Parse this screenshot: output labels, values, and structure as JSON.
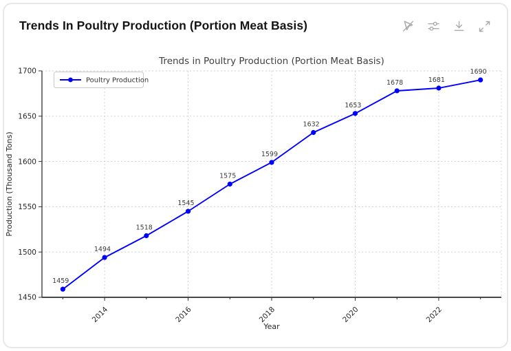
{
  "header": {
    "title": "Trends In Poultry Production (Portion Meat Basis)",
    "icons": [
      "pointer-off-icon",
      "sliders-icon",
      "download-icon",
      "expand-icon"
    ]
  },
  "colors": {
    "line": "#0000ff",
    "grid": "#cccccc",
    "spine": "#2f2f2f",
    "icon": "#a8a8a8",
    "card_border": "#e8e8e8",
    "header_text": "#141414",
    "chart_title_text": "#3f3f3f",
    "tick_text": "#262626",
    "annotation_text": "#3a3a3a"
  },
  "chart_data": {
    "type": "line",
    "title": "Trends in Poultry Production (Portion Meat Basis)",
    "xlabel": "Year",
    "ylabel": "Production (Thousand Tons)",
    "x": [
      2013,
      2014,
      2015,
      2016,
      2017,
      2018,
      2019,
      2020,
      2021,
      2022,
      2023
    ],
    "series": [
      {
        "name": "Poultry Production",
        "color": "#0000ff",
        "values": [
          1459,
          1494,
          1518,
          1545,
          1575,
          1599,
          1632,
          1653,
          1678,
          1681,
          1690
        ]
      }
    ],
    "point_labels": [
      1459,
      1494,
      1518,
      1545,
      1575,
      1599,
      1632,
      1653,
      1678,
      1681,
      1690
    ],
    "xlim": [
      2012.5,
      2023.5
    ],
    "ylim": [
      1450,
      1700
    ],
    "xticks": [
      2014,
      2016,
      2018,
      2020,
      2022
    ],
    "yticks": [
      1450,
      1500,
      1550,
      1600,
      1650,
      1700
    ],
    "grid": true,
    "grid_style": "dashed",
    "legend": {
      "position": "upper-left",
      "entries": [
        "Poultry Production"
      ]
    }
  }
}
